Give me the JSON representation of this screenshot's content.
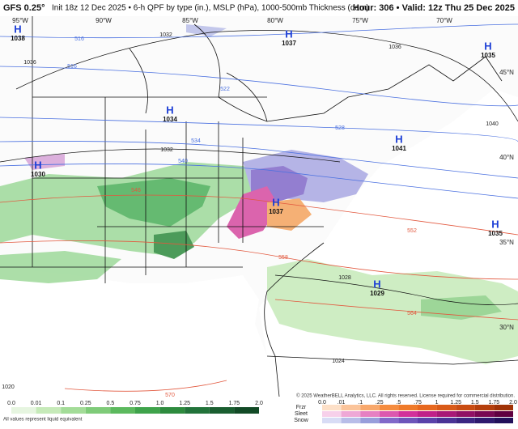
{
  "header": {
    "model": "GFS 0.25°",
    "init": "Init 18z 12 Dec 2025 • 6-h QPF by type (in.), MSLP (hPa), 1000-500mb Thickness (dam)",
    "valid": "Hour: 306 • Valid: 12z Thu 25 Dec 2025"
  },
  "longitude_labels": [
    "95°W",
    "90°W",
    "85°W",
    "80°W",
    "75°W",
    "70°W"
  ],
  "latitude_labels": [
    "45°N",
    "40°N",
    "35°N",
    "30°N"
  ],
  "highs": [
    {
      "symbol": "H",
      "pressure": "1038"
    },
    {
      "symbol": "H",
      "pressure": "1037"
    },
    {
      "symbol": "H",
      "pressure": "1035"
    },
    {
      "symbol": "H",
      "pressure": "1034"
    },
    {
      "symbol": "H",
      "pressure": "1041"
    },
    {
      "symbol": "H",
      "pressure": "1030"
    },
    {
      "symbol": "H",
      "pressure": "1037"
    },
    {
      "symbol": "H",
      "pressure": "1035"
    },
    {
      "symbol": "H",
      "pressure": "1029"
    }
  ],
  "isobar_labels": [
    "1032",
    "1036",
    "1032",
    "1036",
    "1040",
    "1028",
    "1024",
    "1020"
  ],
  "thickness_labels": [
    "516",
    "516",
    "522",
    "528",
    "534",
    "540",
    "546",
    "552",
    "558",
    "564",
    "570"
  ],
  "legend": {
    "rain_ticks": [
      "0.0",
      "0.01",
      "0.1",
      "0.25",
      "0.5",
      "0.75",
      "1.0",
      "1.25",
      "1.5",
      "1.75",
      "2.0"
    ],
    "note": "All values represent liquid equivalent",
    "ptype_labels": [
      "Frzr",
      "Sleet",
      "Snow"
    ],
    "ptype_ticks": [
      "0.0",
      ".01",
      ".1",
      ".25",
      ".5",
      ".75",
      "1",
      "1.25",
      "1.5",
      "1.75",
      "2.0"
    ]
  },
  "copyright": "© 2025 WeatherBELL Analytics, LLC. All rights reserved. License required for commercial distribution."
}
